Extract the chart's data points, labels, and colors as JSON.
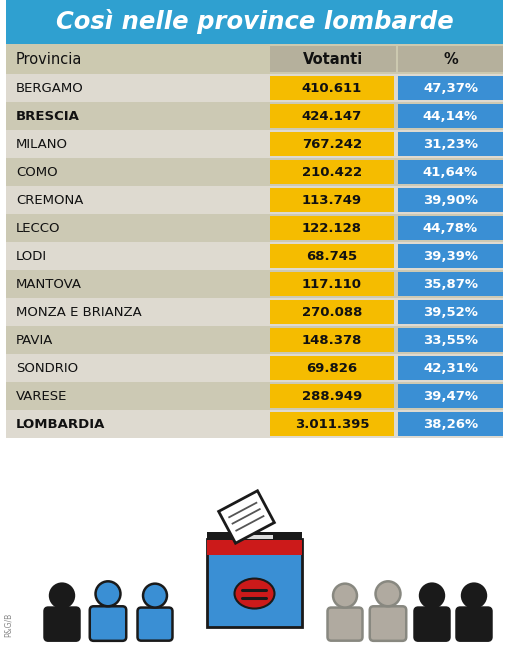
{
  "title": "Così nelle province lombarde",
  "title_bg": "#2fa0d0",
  "title_color": "#ffffff",
  "header_bg": "#ccc9b0",
  "row_bg_light": "#dedad0",
  "row_bg_dark": "#ccc9b4",
  "votanti_bg": "#f5bc00",
  "percent_bg": "#3a8fd4",
  "col_header": [
    "Provincia",
    "Votanti",
    "%"
  ],
  "rows": [
    {
      "provincia": "BERGAMO",
      "bold": false,
      "votanti": "410.611",
      "percent": "47,37%"
    },
    {
      "provincia": "BRESCIA",
      "bold": true,
      "votanti": "424.147",
      "percent": "44,14%"
    },
    {
      "provincia": "MILANO",
      "bold": false,
      "votanti": "767.242",
      "percent": "31,23%"
    },
    {
      "provincia": "COMO",
      "bold": false,
      "votanti": "210.422",
      "percent": "41,64%"
    },
    {
      "provincia": "CREMONA",
      "bold": false,
      "votanti": "113.749",
      "percent": "39,90%"
    },
    {
      "provincia": "LECCO",
      "bold": false,
      "votanti": "122.128",
      "percent": "44,78%"
    },
    {
      "provincia": "LODI",
      "bold": false,
      "votanti": "68.745",
      "percent": "39,39%"
    },
    {
      "provincia": "MANTOVA",
      "bold": false,
      "votanti": "117.110",
      "percent": "35,87%"
    },
    {
      "provincia": "MONZA E BRIANZA",
      "bold": false,
      "votanti": "270.088",
      "percent": "39,52%"
    },
    {
      "provincia": "PAVIA",
      "bold": false,
      "votanti": "148.378",
      "percent": "33,55%"
    },
    {
      "provincia": "SONDRIO",
      "bold": false,
      "votanti": "69.826",
      "percent": "42,31%"
    },
    {
      "provincia": "VARESE",
      "bold": false,
      "votanti": "288.949",
      "percent": "39,47%"
    },
    {
      "provincia": "LOMBARDIA",
      "bold": true,
      "votanti": "3.011.395",
      "percent": "38,26%"
    }
  ],
  "fig_width": 5.09,
  "fig_height": 6.55,
  "dpi": 100
}
